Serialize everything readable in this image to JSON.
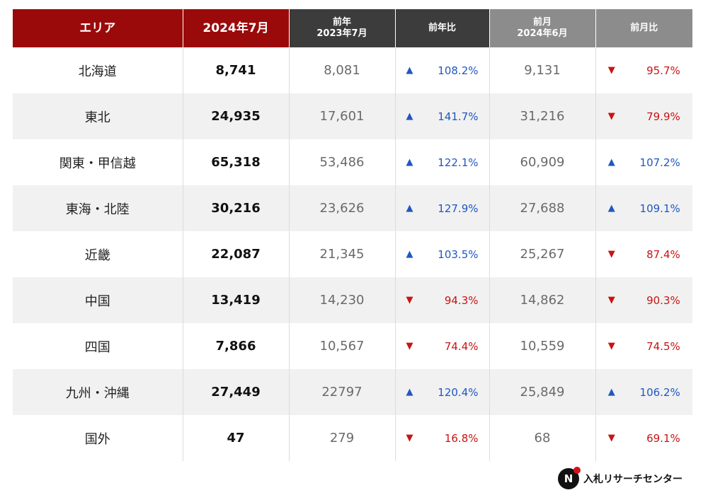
{
  "header": {
    "area": "エリア",
    "current": "2024年7月",
    "prev_year_line1": "前年",
    "prev_year_line2": "2023年7月",
    "prev_year_ratio": "前年比",
    "prev_month_line1": "前月",
    "prev_month_line2": "2024年6月",
    "prev_month_ratio": "前月比"
  },
  "rows": [
    {
      "area": "北海道",
      "current": "8,741",
      "prev_year": "8,081",
      "yoy": "108.2%",
      "yoy_dir": "up",
      "prev_month": "9,131",
      "mom": "95.7%",
      "mom_dir": "down"
    },
    {
      "area": "東北",
      "current": "24,935",
      "prev_year": "17,601",
      "yoy": "141.7%",
      "yoy_dir": "up",
      "prev_month": "31,216",
      "mom": "79.9%",
      "mom_dir": "down"
    },
    {
      "area": "関東・甲信越",
      "current": "65,318",
      "prev_year": "53,486",
      "yoy": "122.1%",
      "yoy_dir": "up",
      "prev_month": "60,909",
      "mom": "107.2%",
      "mom_dir": "up"
    },
    {
      "area": "東海・北陸",
      "current": "30,216",
      "prev_year": "23,626",
      "yoy": "127.9%",
      "yoy_dir": "up",
      "prev_month": "27,688",
      "mom": "109.1%",
      "mom_dir": "up"
    },
    {
      "area": "近畿",
      "current": "22,087",
      "prev_year": "21,345",
      "yoy": "103.5%",
      "yoy_dir": "up",
      "prev_month": "25,267",
      "mom": "87.4%",
      "mom_dir": "down"
    },
    {
      "area": "中国",
      "current": "13,419",
      "prev_year": "14,230",
      "yoy": "94.3%",
      "yoy_dir": "down",
      "prev_month": "14,862",
      "mom": "90.3%",
      "mom_dir": "down"
    },
    {
      "area": "四国",
      "current": "7,866",
      "prev_year": "10,567",
      "yoy": "74.4%",
      "yoy_dir": "down",
      "prev_month": "10,559",
      "mom": "74.5%",
      "mom_dir": "down"
    },
    {
      "area": "九州・沖縄",
      "current": "27,449",
      "prev_year": "22797",
      "yoy": "120.4%",
      "yoy_dir": "up",
      "prev_month": "25,849",
      "mom": "106.2%",
      "mom_dir": "up"
    },
    {
      "area": "国外",
      "current": "47",
      "prev_year": "279",
      "yoy": "16.8%",
      "yoy_dir": "down",
      "prev_month": "68",
      "mom": "69.1%",
      "mom_dir": "down"
    }
  ],
  "colors": {
    "header_red": "#9b0a0a",
    "header_dark": "#3c3c3c",
    "header_gray": "#8c8c8c",
    "up": "#1f57c3",
    "down": "#c81414"
  },
  "icons": {
    "up": "arrow-up-icon",
    "down": "arrow-down-icon"
  },
  "footer": {
    "logo_text": "入札リサーチセンター",
    "logo_mark": "N"
  }
}
